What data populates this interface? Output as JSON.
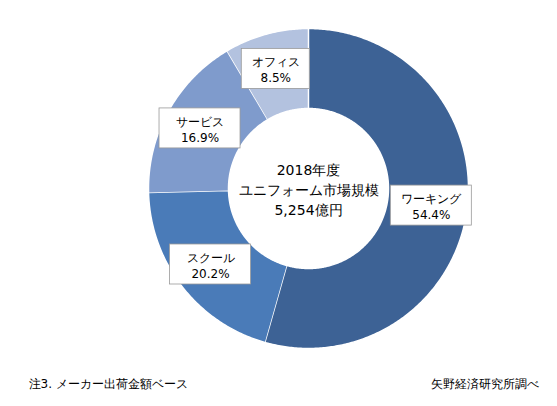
{
  "chart_data": {
    "type": "pie",
    "center_text": [
      "2018年度",
      "ユニフォーム市場規模",
      "5,254億円"
    ],
    "categories": [
      "ワーキング",
      "スクール",
      "サービス",
      "オフィス"
    ],
    "values": [
      54.4,
      20.2,
      16.9,
      8.5
    ],
    "value_labels": [
      "54.4%",
      "20.2%",
      "16.9%",
      "8.5%"
    ],
    "colors": [
      "#3d6295",
      "#4a7bb8",
      "#7f9bcc",
      "#b3c2df"
    ],
    "data_labels": true,
    "note": "注3. メーカー出荷金額ベース",
    "source": "矢野経済研究所調べ"
  }
}
